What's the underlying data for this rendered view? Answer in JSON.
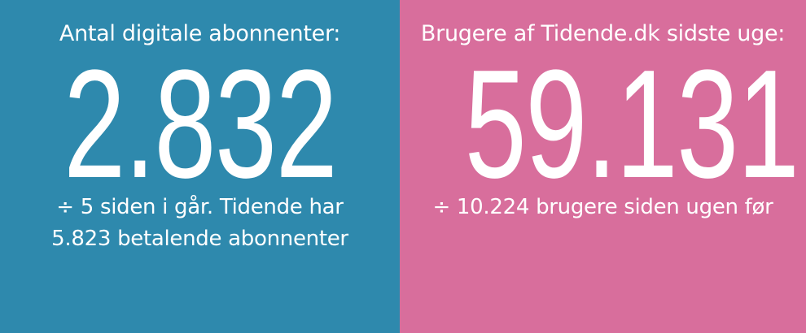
{
  "colors": {
    "left_bg": "#2e89ad",
    "right_bg": "#d86e9c",
    "text": "#ffffff"
  },
  "left": {
    "title": "Antal digitale abonnenter:",
    "value": "2.832",
    "sub_line1": "÷ 5 siden i går. Tidende har",
    "sub_line2": "5.823 betalende abonnenter"
  },
  "right": {
    "title": "Brugere af Tidende.dk sidste uge:",
    "value": "59.131",
    "sub_line1": "÷ 10.224 brugere siden ugen før"
  }
}
